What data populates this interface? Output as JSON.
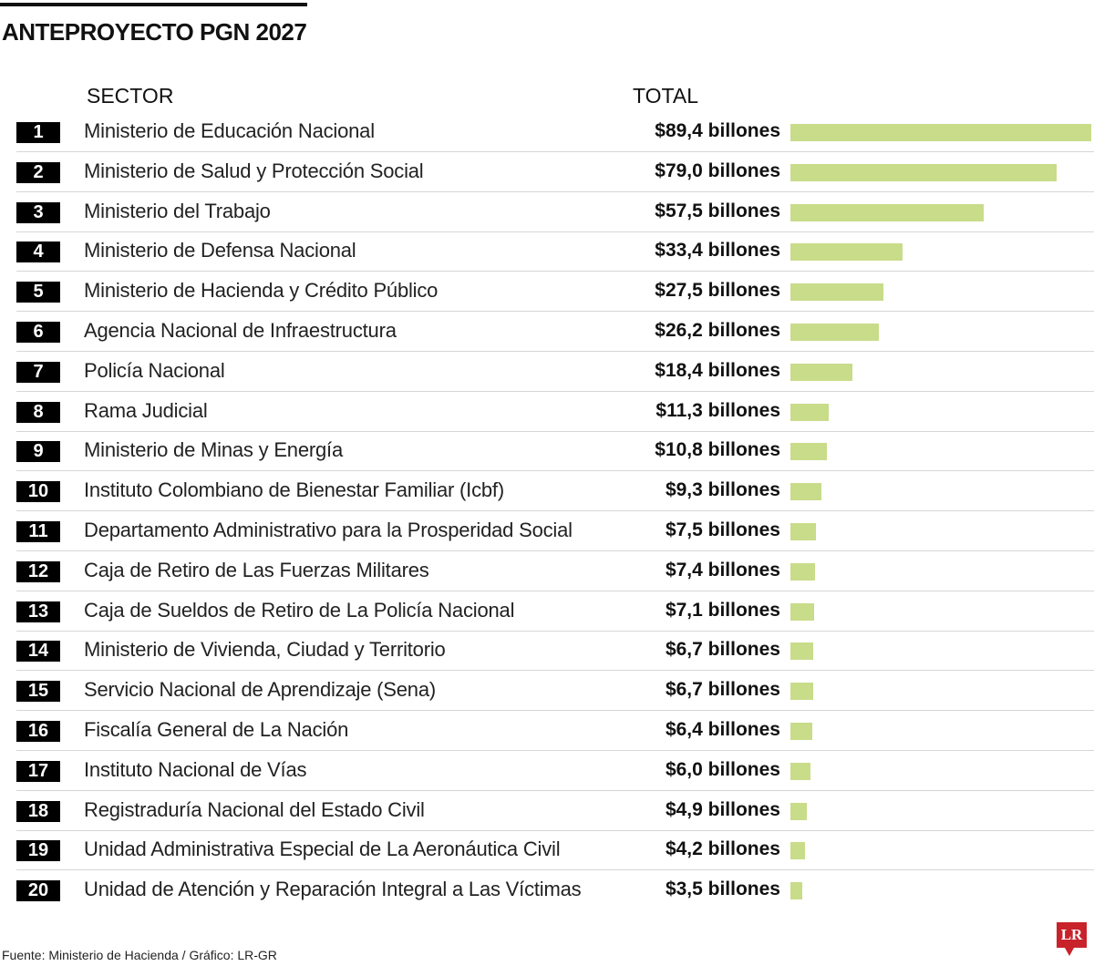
{
  "chart_data": {
    "type": "bar",
    "title": "ANTEPROYECTO PGN 2027",
    "column_headers": {
      "sector": "SECTOR",
      "total": "TOTAL"
    },
    "unit": "billones",
    "bar_color": "#c8dc8a",
    "xlim": [
      0,
      89.4
    ],
    "rows": [
      {
        "rank": "1",
        "sector": "Ministerio de Educación Nacional",
        "value": 89.4,
        "label": "$89,4 billones"
      },
      {
        "rank": "2",
        "sector": "Ministerio de Salud y Protección Social",
        "value": 79.0,
        "label": "$79,0 billones"
      },
      {
        "rank": "3",
        "sector": "Ministerio del Trabajo",
        "value": 57.5,
        "label": "$57,5 billones"
      },
      {
        "rank": "4",
        "sector": "Ministerio de Defensa Nacional",
        "value": 33.4,
        "label": "$33,4 billones"
      },
      {
        "rank": "5",
        "sector": "Ministerio de Hacienda y Crédito Público",
        "value": 27.5,
        "label": "$27,5 billones"
      },
      {
        "rank": "6",
        "sector": "Agencia Nacional de Infraestructura",
        "value": 26.2,
        "label": "$26,2 billones"
      },
      {
        "rank": "7",
        "sector": "Policía Nacional",
        "value": 18.4,
        "label": "$18,4 billones"
      },
      {
        "rank": "8",
        "sector": "Rama Judicial",
        "value": 11.3,
        "label": "$11,3 billones"
      },
      {
        "rank": "9",
        "sector": "Ministerio de Minas y Energía",
        "value": 10.8,
        "label": "$10,8 billones"
      },
      {
        "rank": "10",
        "sector": "Instituto Colombiano de Bienestar Familiar (Icbf)",
        "value": 9.3,
        "label": "$9,3 billones"
      },
      {
        "rank": "11",
        "sector": "Departamento Administrativo para la Prosperidad Social",
        "value": 7.5,
        "label": "$7,5 billones"
      },
      {
        "rank": "12",
        "sector": "Caja de Retiro de Las Fuerzas Militares",
        "value": 7.4,
        "label": "$7,4 billones"
      },
      {
        "rank": "13",
        "sector": "Caja de Sueldos de Retiro de La Policía Nacional",
        "value": 7.1,
        "label": "$7,1 billones"
      },
      {
        "rank": "14",
        "sector": "Ministerio de Vivienda, Ciudad y Territorio",
        "value": 6.7,
        "label": "$6,7 billones"
      },
      {
        "rank": "15",
        "sector": "Servicio Nacional de Aprendizaje (Sena)",
        "value": 6.7,
        "label": "$6,7 billones"
      },
      {
        "rank": "16",
        "sector": "Fiscalía General de La Nación",
        "value": 6.4,
        "label": "$6,4 billones"
      },
      {
        "rank": "17",
        "sector": "Instituto Nacional de Vías",
        "value": 6.0,
        "label": "$6,0 billones"
      },
      {
        "rank": "18",
        "sector": "Registraduría Nacional del Estado Civil",
        "value": 4.9,
        "label": "$4,9 billones"
      },
      {
        "rank": "19",
        "sector": "Unidad Administrativa Especial de La Aeronáutica Civil",
        "value": 4.2,
        "label": "$4,2 billones"
      },
      {
        "rank": "20",
        "sector": "Unidad de Atención y Reparación Integral a Las Víctimas",
        "value": 3.5,
        "label": "$3,5 billones"
      }
    ],
    "source": "Fuente: Ministerio de Hacienda / Gráfico: LR-GR"
  },
  "logo": {
    "text": "LR",
    "color": "#c8232b"
  }
}
